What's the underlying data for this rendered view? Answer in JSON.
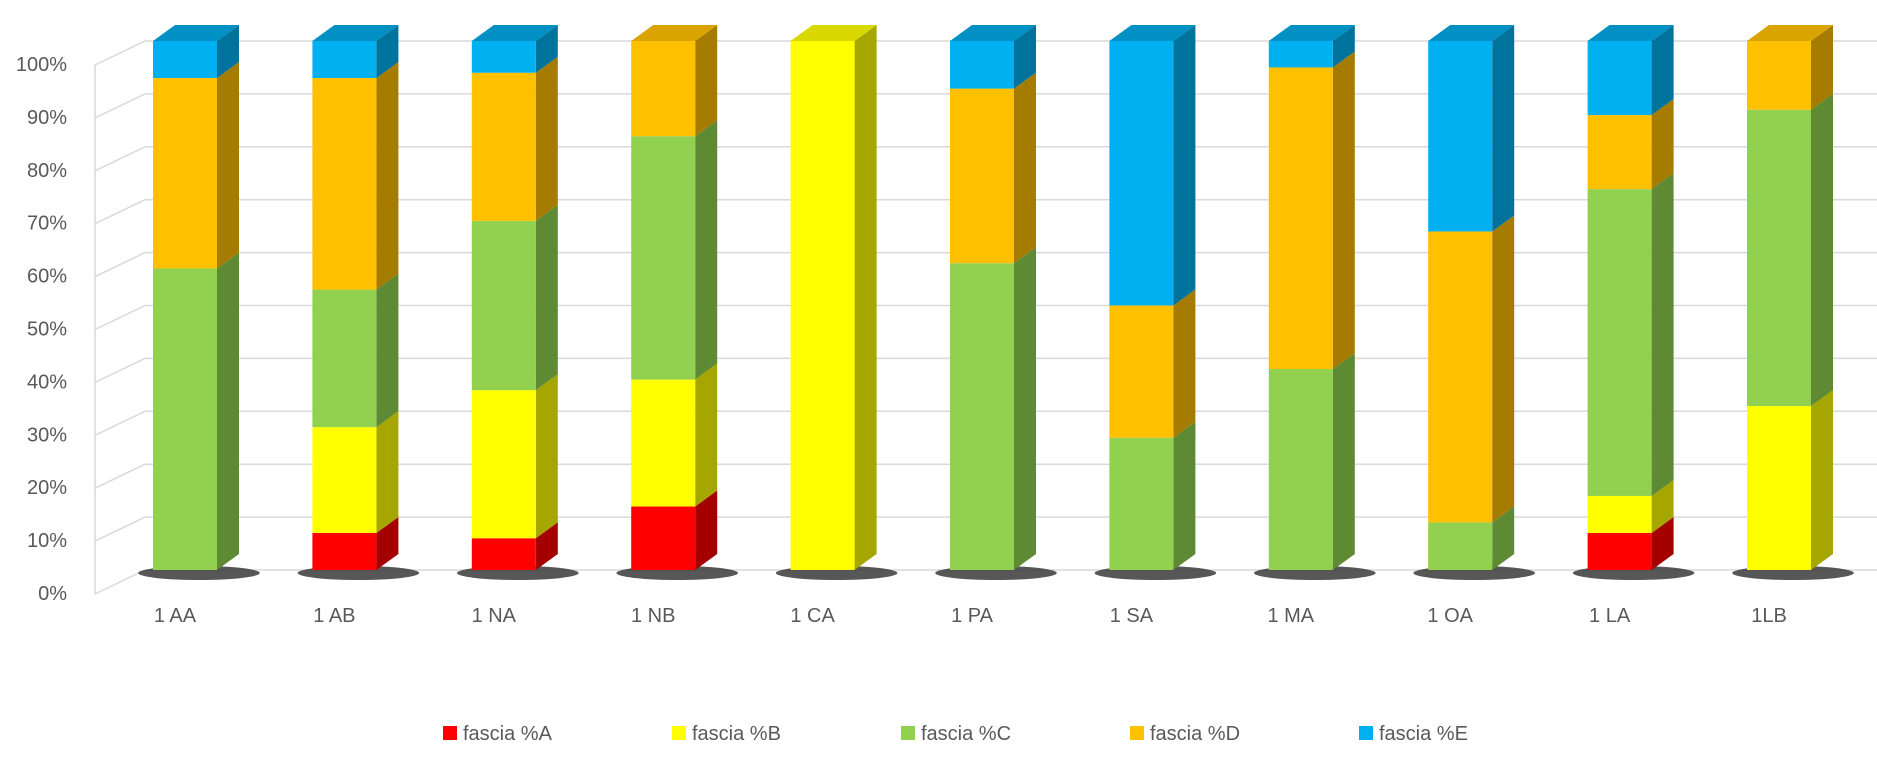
{
  "chart_data": {
    "type": "bar",
    "stacked": true,
    "percent_stacked": true,
    "three_d": true,
    "categories": [
      "1 AA",
      "1 AB",
      "1 NA",
      "1 NB",
      "1 CA",
      "1 PA",
      "1 SA",
      "1 MA",
      "1 OA",
      "1 LA",
      "1LB"
    ],
    "series": [
      {
        "name": "fascia %A",
        "color": "#FF0000",
        "side_color": "#A50000",
        "top_color": "#C00000",
        "values": [
          0,
          7,
          6,
          12,
          0,
          0,
          0,
          0,
          0,
          7,
          0
        ]
      },
      {
        "name": "fascia %B",
        "color": "#FFFF00",
        "side_color": "#A6A600",
        "top_color": "#D9D900",
        "values": [
          0,
          20,
          28,
          24,
          100,
          0,
          0,
          0,
          0,
          7,
          31
        ]
      },
      {
        "name": "fascia %C",
        "color": "#92D050",
        "side_color": "#5E8A34",
        "top_color": "#7AB33F",
        "values": [
          57,
          26,
          32,
          46,
          0,
          58,
          25,
          38,
          9,
          58,
          56
        ]
      },
      {
        "name": "fascia %D",
        "color": "#FFC000",
        "side_color": "#A67C00",
        "top_color": "#D9A300",
        "values": [
          36,
          40,
          28,
          18,
          0,
          33,
          25,
          57,
          55,
          14,
          13
        ]
      },
      {
        "name": "fascia %E",
        "color": "#00B0F0",
        "side_color": "#00739C",
        "top_color": "#0090C4",
        "values": [
          7,
          7,
          6,
          0,
          0,
          9,
          50,
          5,
          36,
          14,
          0
        ]
      }
    ],
    "y_ticks": [
      "0%",
      "10%",
      "20%",
      "30%",
      "40%",
      "50%",
      "60%",
      "70%",
      "80%",
      "90%",
      "100%"
    ],
    "ylim": [
      0,
      100
    ],
    "grid": true,
    "legend_position": "bottom",
    "title": "",
    "xlabel": "",
    "ylabel": ""
  }
}
